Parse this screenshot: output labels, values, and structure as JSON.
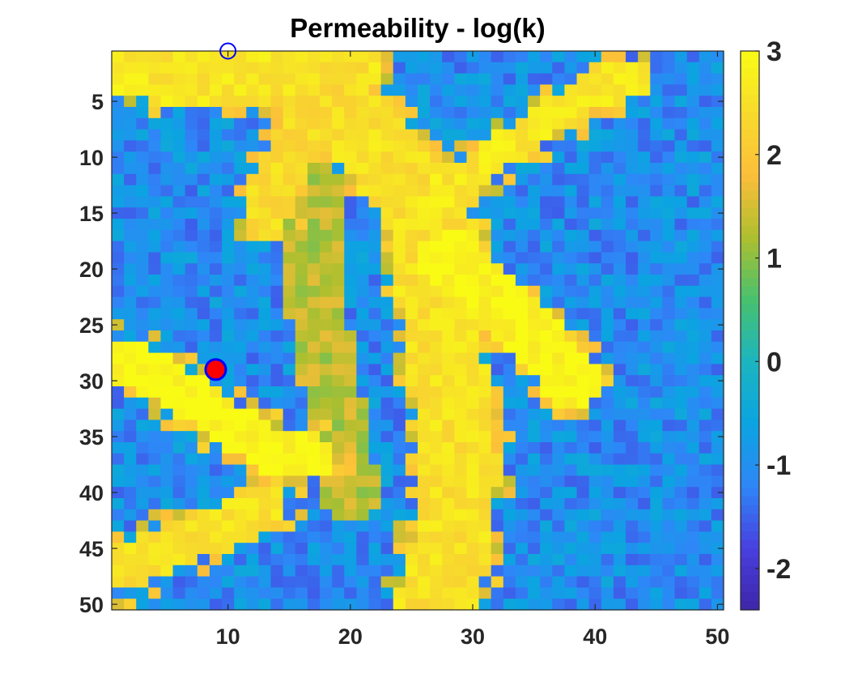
{
  "chart_data": {
    "type": "heatmap",
    "title": "Permeability - log(k)",
    "xlabel": "",
    "ylabel": "",
    "grid_size": [
      50,
      50
    ],
    "x_range": [
      0.5,
      50.5
    ],
    "y_range": [
      0.5,
      50.5
    ],
    "y_reversed": true,
    "x_ticks": [
      10,
      20,
      30,
      40,
      50
    ],
    "x_tick_labels": [
      "10",
      "20",
      "30",
      "40",
      "50"
    ],
    "y_ticks": [
      5,
      10,
      15,
      20,
      25,
      30,
      35,
      40,
      45,
      50
    ],
    "y_tick_labels": [
      "5",
      "10",
      "15",
      "20",
      "25",
      "30",
      "35",
      "40",
      "45",
      "50"
    ],
    "colorbar": {
      "colormap": "parula",
      "clim": [
        -2.4,
        3.0
      ],
      "ticks": [
        -2,
        -1,
        0,
        1,
        2,
        3
      ],
      "tick_labels": [
        "-2",
        "-1",
        "0",
        "1",
        "2",
        "3"
      ]
    },
    "colormap_stops": [
      "#3e26a8",
      "#4840e0",
      "#2e87f7",
      "#0ba4e1",
      "#1cb5c0",
      "#48c16e",
      "#aebf2f",
      "#fcbe3a",
      "#f7db2c",
      "#f9fb15"
    ],
    "value_legend": {
      "low": -1.0,
      "high": 2.6,
      "mid": 1.3
    },
    "fields": {
      "high_perm_channels": [
        {
          "name": "upper-left channel",
          "polyline": [
            [
              2,
              2
            ],
            [
              6,
              3
            ],
            [
              11,
              3
            ],
            [
              16,
              2
            ],
            [
              20,
              2
            ]
          ],
          "width": 2.5,
          "value": 2.6
        },
        {
          "name": "central channel",
          "polyline": [
            [
              18,
              5
            ],
            [
              22,
              9
            ],
            [
              25,
              13
            ],
            [
              27,
              17
            ],
            [
              27,
              22
            ],
            [
              28,
              30
            ],
            [
              29,
              38
            ],
            [
              28,
              46
            ],
            [
              27,
              50
            ]
          ],
          "width": 3.2,
          "value": 2.5
        },
        {
          "name": "upper-right channel",
          "polyline": [
            [
              27,
              14
            ],
            [
              29,
              12
            ],
            [
              33,
              9
            ],
            [
              37,
              6
            ],
            [
              40,
              4
            ],
            [
              43,
              3
            ]
          ],
          "width": 1.6,
          "value": 2.6
        },
        {
          "name": "right diagonal body",
          "polyline": [
            [
              28,
              19
            ],
            [
              31,
              22
            ],
            [
              35,
              26
            ],
            [
              38,
              30
            ]
          ],
          "width": 2.3,
          "value": 2.9
        },
        {
          "name": "left diagonal body",
          "polyline": [
            [
              1,
              28
            ],
            [
              5,
              30
            ],
            [
              9,
              33
            ],
            [
              13,
              36
            ],
            [
              17,
              37
            ]
          ],
          "width": 2.0,
          "value": 2.9
        },
        {
          "name": "left branch",
          "polyline": [
            [
              20,
              3
            ],
            [
              16,
              8
            ],
            [
              14,
              12
            ],
            [
              13,
              16
            ]
          ],
          "width": 1.8,
          "value": 2.4
        },
        {
          "name": "lower-left cluster",
          "polyline": [
            [
              1,
              47
            ],
            [
              5,
              45
            ],
            [
              10,
              43
            ],
            [
              13,
              41
            ]
          ],
          "width": 2.0,
          "value": 2.5
        }
      ],
      "mid_perm_zone": {
        "polyline": [
          [
            16,
            7
          ],
          [
            17,
            14
          ],
          [
            17,
            22
          ],
          [
            18,
            28
          ],
          [
            19,
            34
          ],
          [
            20,
            40
          ]
        ],
        "width": 2.4,
        "value": 1.3
      }
    },
    "markers": [
      {
        "name": "injection well",
        "x": 9,
        "y": 29,
        "fill": "#ff0000",
        "edge": "#0000ff",
        "style": "filled-circle"
      },
      {
        "name": "production well",
        "x": 10,
        "y": 0.5,
        "fill": "none",
        "edge": "#0000ff",
        "style": "open-circle"
      }
    ]
  }
}
